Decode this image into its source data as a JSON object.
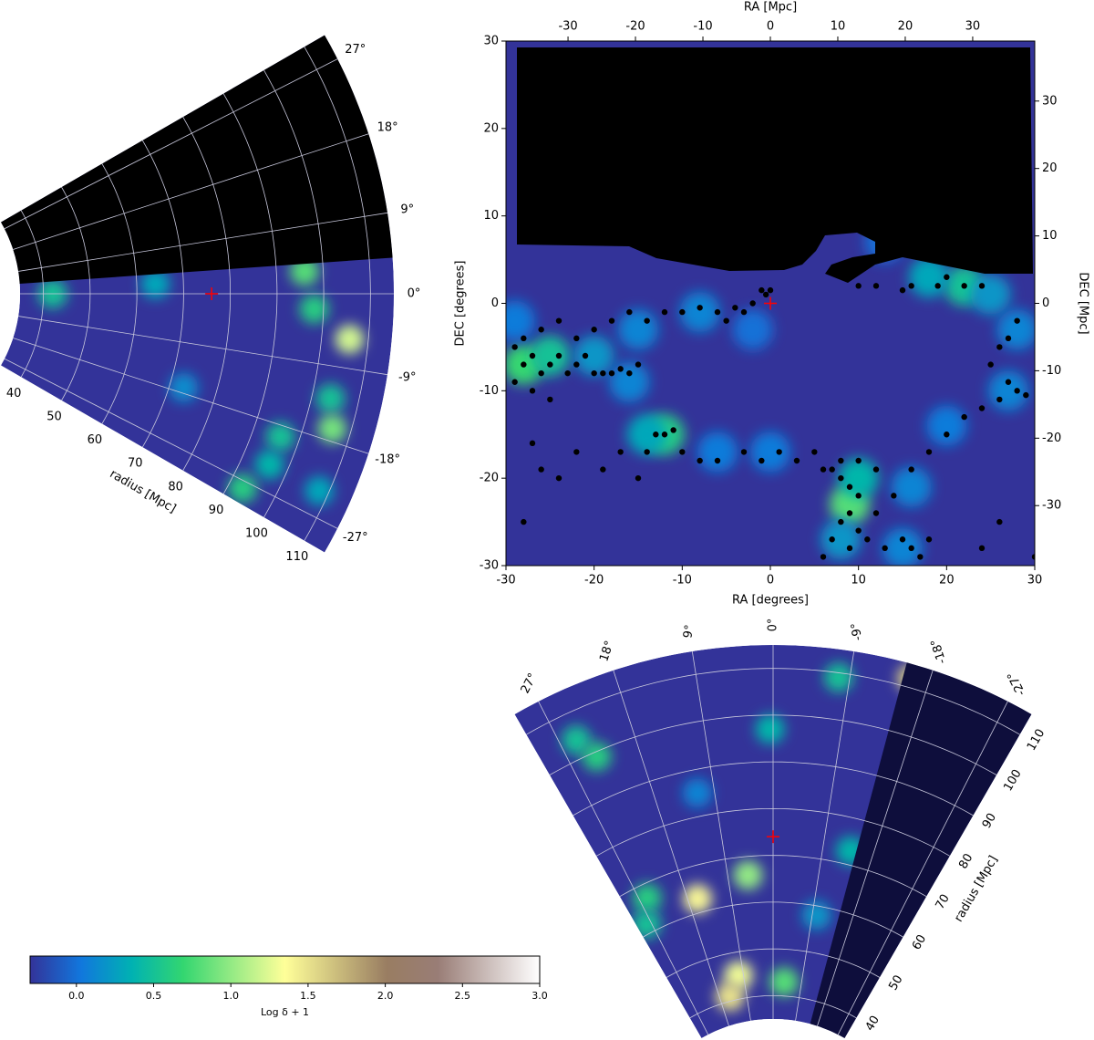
{
  "chart_data": [
    {
      "type": "wedge",
      "xlabel": "radius [Mpc]",
      "rlim": [
        35,
        115
      ],
      "rticks": [
        40,
        50,
        60,
        70,
        80,
        90,
        100,
        110
      ],
      "angle_lim": [
        -30,
        30
      ],
      "angle_ticks": [
        {
          "value": 27,
          "label": "27°"
        },
        {
          "value": 18,
          "label": "18°"
        },
        {
          "value": 9,
          "label": "9°"
        },
        {
          "value": 0,
          "label": "0°"
        },
        {
          "value": -9,
          "label": "-9°"
        },
        {
          "value": -18,
          "label": "-18°"
        },
        {
          "value": -27,
          "label": "-27°"
        }
      ],
      "mask": {
        "from": 4,
        "to": 30,
        "color": "#000000"
      },
      "marker": {
        "angle": 0,
        "radius": 76,
        "color": "#ff0000"
      },
      "density": {
        "angle": [
          0,
          2,
          3,
          -2,
          -5.5,
          -13,
          -16.5,
          -19.5,
          -23.5,
          -28,
          -24,
          -17
        ],
        "radius": [
          42,
          64,
          96,
          98,
          106,
          104,
          106,
          96,
          96,
          93,
          108,
          73
        ],
        "values": [
          0.5,
          0.3,
          0.8,
          0.6,
          1.2,
          0.5,
          0.9,
          0.5,
          0.4,
          0.6,
          0.3,
          0.15
        ]
      }
    },
    {
      "type": "heatmap",
      "xlabel": "RA [degrees]",
      "ylabel": "DEC [degrees]",
      "x2label": "RA [Mpc]",
      "y2label": "DEC [Mpc]",
      "xlim": [
        -30,
        30
      ],
      "ylim": [
        -30,
        30
      ],
      "xticks": [
        -30,
        -20,
        -10,
        0,
        10,
        20,
        30
      ],
      "yticks": [
        -30,
        -20,
        -10,
        0,
        10,
        20,
        30
      ],
      "x2lim": [
        -39.2,
        39.2
      ],
      "x2ticks": [
        -30,
        -20,
        -10,
        0,
        10,
        20,
        30
      ],
      "y2lim": [
        -38.9,
        38.9
      ],
      "y2ticks": [
        -30,
        -20,
        -10,
        0,
        10,
        20,
        30
      ],
      "marker": {
        "x": 0,
        "y": 0,
        "color": "#ff0000"
      },
      "density": {
        "x": [
          -28,
          -25,
          -20,
          -15,
          -8,
          -12,
          -14,
          -16,
          9,
          10,
          8,
          15,
          16,
          22,
          18,
          25,
          28,
          27,
          20,
          13,
          -29,
          0,
          -6,
          -2
        ],
        "y": [
          -7,
          -6,
          -6,
          -3,
          -1,
          -15,
          -15,
          -9,
          -23,
          -20,
          -27,
          -28,
          -21,
          2,
          3,
          1,
          -3,
          -10,
          -14,
          7,
          -2,
          -17,
          -17,
          -3
        ],
        "values": [
          0.7,
          0.5,
          0.2,
          0.1,
          0.1,
          0.6,
          0.3,
          0.1,
          0.8,
          0.4,
          0.2,
          0.1,
          0.1,
          0.5,
          0.3,
          0.2,
          0.1,
          0.1,
          0.05,
          0,
          0.05,
          0.05,
          0.05,
          0
        ]
      },
      "points": {
        "x": [
          -29,
          -28,
          -27,
          -26,
          -25,
          -24,
          -23,
          -22,
          -21,
          -20,
          -29,
          -27,
          -25,
          -28,
          -26,
          -24,
          -22,
          -20,
          -18,
          -16,
          -14,
          -12,
          -10,
          -8,
          -6,
          -4,
          -5,
          -3,
          -2,
          -18,
          -17,
          -16,
          -15,
          -19,
          -12,
          -11,
          -13,
          -14,
          -17,
          -19,
          -22,
          -24,
          -26,
          -28,
          -27,
          -15,
          -10,
          -8,
          -6,
          -3,
          -1,
          1,
          3,
          5,
          6,
          7,
          8,
          9,
          10,
          9,
          8,
          10,
          11,
          7,
          6,
          9,
          12,
          8,
          10,
          12,
          13,
          15,
          16,
          17,
          18,
          14,
          16,
          18,
          20,
          22,
          24,
          26,
          28,
          29,
          27,
          25,
          27,
          28,
          26,
          10,
          12,
          16,
          20,
          22,
          24,
          19,
          15,
          -1,
          0,
          -0.5,
          30,
          24,
          26
        ],
        "y": [
          -5,
          -7,
          -6,
          -8,
          -7,
          -6,
          -8,
          -7,
          -6,
          -8,
          -9,
          -10,
          -11,
          -4,
          -3,
          -2,
          -4,
          -3,
          -2,
          -1,
          -2,
          -1,
          -1,
          -0.5,
          -1,
          -0.5,
          -2,
          -1,
          0,
          -8,
          -7.5,
          -8,
          -7,
          -8,
          -15,
          -14.5,
          -15,
          -17,
          -17,
          -19,
          -17,
          -20,
          -19,
          -25,
          -16,
          -20,
          -17,
          -18,
          -18,
          -17,
          -18,
          -17,
          -18,
          -17,
          -19,
          -19,
          -20,
          -21,
          -22,
          -24,
          -25,
          -26,
          -27,
          -27,
          -29,
          -28,
          -24,
          -18,
          -18,
          -19,
          -28,
          -27,
          -28,
          -29,
          -27,
          -22,
          -19,
          -17,
          -15,
          -13,
          -12,
          -11,
          -10,
          -10.5,
          -9,
          -7,
          -4,
          -2,
          -5,
          2,
          2,
          2,
          3,
          2,
          2,
          2,
          1.5,
          1.5,
          1.5,
          1,
          -29,
          -28,
          -25
        ]
      }
    },
    {
      "type": "wedge",
      "xlabel": "radius [Mpc]",
      "rlim": [
        35,
        115
      ],
      "rticks": [
        40,
        50,
        60,
        70,
        80,
        90,
        100,
        110
      ],
      "angle_lim": [
        -30,
        30
      ],
      "angle_ticks": [
        {
          "value": 27,
          "label": "27°"
        },
        {
          "value": 18,
          "label": "18°"
        },
        {
          "value": 9,
          "label": "9°"
        },
        {
          "value": 0,
          "label": "0°"
        },
        {
          "value": -9,
          "label": "-9°"
        },
        {
          "value": -18,
          "label": "-18°"
        },
        {
          "value": -27,
          "label": "-27°"
        }
      ],
      "mask": {
        "from": -30,
        "to": -15,
        "color": "#0e0e3c"
      },
      "marker": {
        "angle": 0,
        "radius": 74,
        "color": "#ff0000"
      },
      "density": {
        "angle": [
          -16,
          -7.7,
          0.4,
          25,
          23.5,
          11.6,
          5,
          16,
          25.5,
          28,
          10.5,
          14.6,
          -3.5,
          -14,
          -10
        ],
        "radius": [
          112,
          109,
          97,
          104,
          99,
          85,
          66,
          63,
          67,
          62,
          45,
          41,
          43,
          73,
          58
        ],
        "values": [
          1.6,
          0.5,
          0.4,
          0.5,
          0.6,
          0.1,
          1.0,
          1.4,
          0.6,
          0.5,
          1.3,
          1.5,
          0.8,
          0.4,
          0.2
        ]
      }
    },
    {
      "type": "colorbar",
      "label": "Log δ + 1",
      "clim": [
        -0.3,
        3.0
      ],
      "ticks": [
        {
          "value": 0,
          "label": "0.0"
        },
        {
          "value": 0.5,
          "label": "0.5"
        },
        {
          "value": 1,
          "label": "1.0"
        },
        {
          "value": 1.5,
          "label": "1.5"
        },
        {
          "value": 2,
          "label": "2.0"
        },
        {
          "value": 2.5,
          "label": "2.5"
        },
        {
          "value": 3,
          "label": "3.0"
        }
      ],
      "colormap": [
        "#333399",
        "#1177dd",
        "#00b2b2",
        "#33d670",
        "#99eb85",
        "#ffff99",
        "#ccbe7d",
        "#997d62",
        "#997d76",
        "#ccbebb",
        "#ffffff"
      ]
    }
  ]
}
